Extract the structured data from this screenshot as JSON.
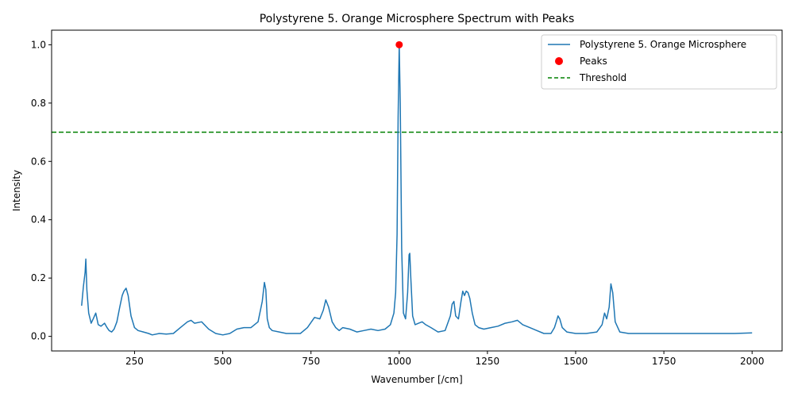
{
  "chart_data": {
    "type": "line",
    "title": "Polystyrene 5. Orange Microsphere Spectrum with Peaks",
    "xlabel": "Wavenumber [/cm]",
    "ylabel": "Intensity",
    "xlim": [
      15,
      2085
    ],
    "ylim": [
      -0.05,
      1.05
    ],
    "xticks": [
      250,
      500,
      750,
      1000,
      1250,
      1500,
      1750,
      2000
    ],
    "xtick_labels": [
      "250",
      "500",
      "750",
      "1000",
      "1250",
      "1500",
      "1750",
      "2000"
    ],
    "yticks": [
      0.0,
      0.2,
      0.4,
      0.6,
      0.8,
      1.0
    ],
    "ytick_labels": [
      "0.0",
      "0.2",
      "0.4",
      "0.6",
      "0.8",
      "1.0"
    ],
    "grid": false,
    "legend_position": "top-right",
    "colors": {
      "spectrum": "#1f77b4",
      "peaks": "#ff0000",
      "threshold": "#008000"
    },
    "series": [
      {
        "name": "Polystyrene 5. Orange Microsphere",
        "kind": "line",
        "x": [
          100,
          105,
          110,
          112,
          115,
          120,
          127,
          133,
          140,
          147,
          155,
          165,
          172,
          178,
          185,
          192,
          200,
          208,
          215,
          220,
          226,
          232,
          240,
          250,
          260,
          275,
          290,
          300,
          320,
          340,
          360,
          380,
          400,
          410,
          420,
          440,
          460,
          480,
          500,
          520,
          540,
          560,
          580,
          600,
          612,
          618,
          622,
          626,
          632,
          640,
          660,
          680,
          700,
          720,
          740,
          760,
          775,
          785,
          792,
          800,
          810,
          820,
          830,
          840,
          860,
          880,
          900,
          920,
          940,
          960,
          975,
          985,
          990,
          994,
          997,
          1000,
          1003,
          1007,
          1012,
          1018,
          1024,
          1028,
          1030,
          1033,
          1038,
          1045,
          1055,
          1065,
          1075,
          1090,
          1110,
          1130,
          1145,
          1150,
          1155,
          1160,
          1168,
          1175,
          1180,
          1185,
          1190,
          1195,
          1200,
          1207,
          1215,
          1225,
          1240,
          1260,
          1280,
          1300,
          1320,
          1335,
          1350,
          1370,
          1390,
          1410,
          1430,
          1440,
          1445,
          1450,
          1455,
          1462,
          1475,
          1500,
          1530,
          1560,
          1575,
          1582,
          1588,
          1595,
          1600,
          1605,
          1612,
          1625,
          1650,
          1700,
          1750,
          1800,
          1850,
          1900,
          1950,
          2000
        ],
        "y": [
          0.105,
          0.17,
          0.22,
          0.265,
          0.16,
          0.08,
          0.045,
          0.06,
          0.08,
          0.04,
          0.035,
          0.045,
          0.03,
          0.02,
          0.015,
          0.025,
          0.05,
          0.1,
          0.14,
          0.155,
          0.165,
          0.14,
          0.07,
          0.03,
          0.02,
          0.015,
          0.01,
          0.005,
          0.01,
          0.008,
          0.01,
          0.03,
          0.05,
          0.055,
          0.045,
          0.05,
          0.025,
          0.01,
          0.005,
          0.01,
          0.025,
          0.03,
          0.03,
          0.05,
          0.12,
          0.185,
          0.16,
          0.06,
          0.03,
          0.02,
          0.015,
          0.01,
          0.01,
          0.01,
          0.03,
          0.065,
          0.06,
          0.09,
          0.125,
          0.1,
          0.05,
          0.03,
          0.02,
          0.03,
          0.025,
          0.015,
          0.02,
          0.025,
          0.02,
          0.025,
          0.04,
          0.08,
          0.15,
          0.35,
          0.75,
          1.0,
          0.8,
          0.3,
          0.08,
          0.06,
          0.15,
          0.28,
          0.285,
          0.2,
          0.07,
          0.04,
          0.045,
          0.05,
          0.04,
          0.03,
          0.015,
          0.02,
          0.07,
          0.11,
          0.12,
          0.07,
          0.06,
          0.12,
          0.155,
          0.14,
          0.155,
          0.15,
          0.13,
          0.08,
          0.04,
          0.03,
          0.025,
          0.03,
          0.035,
          0.045,
          0.05,
          0.055,
          0.04,
          0.03,
          0.02,
          0.01,
          0.01,
          0.03,
          0.05,
          0.07,
          0.06,
          0.03,
          0.015,
          0.01,
          0.01,
          0.015,
          0.04,
          0.08,
          0.06,
          0.1,
          0.18,
          0.15,
          0.05,
          0.015,
          0.01,
          0.01,
          0.01,
          0.01,
          0.01,
          0.01,
          0.01,
          0.012
        ]
      },
      {
        "name": "Peaks",
        "kind": "scatter",
        "x": [
          1000
        ],
        "y": [
          1.0
        ]
      },
      {
        "name": "Threshold",
        "kind": "hline",
        "y": [
          0.7
        ]
      }
    ]
  }
}
